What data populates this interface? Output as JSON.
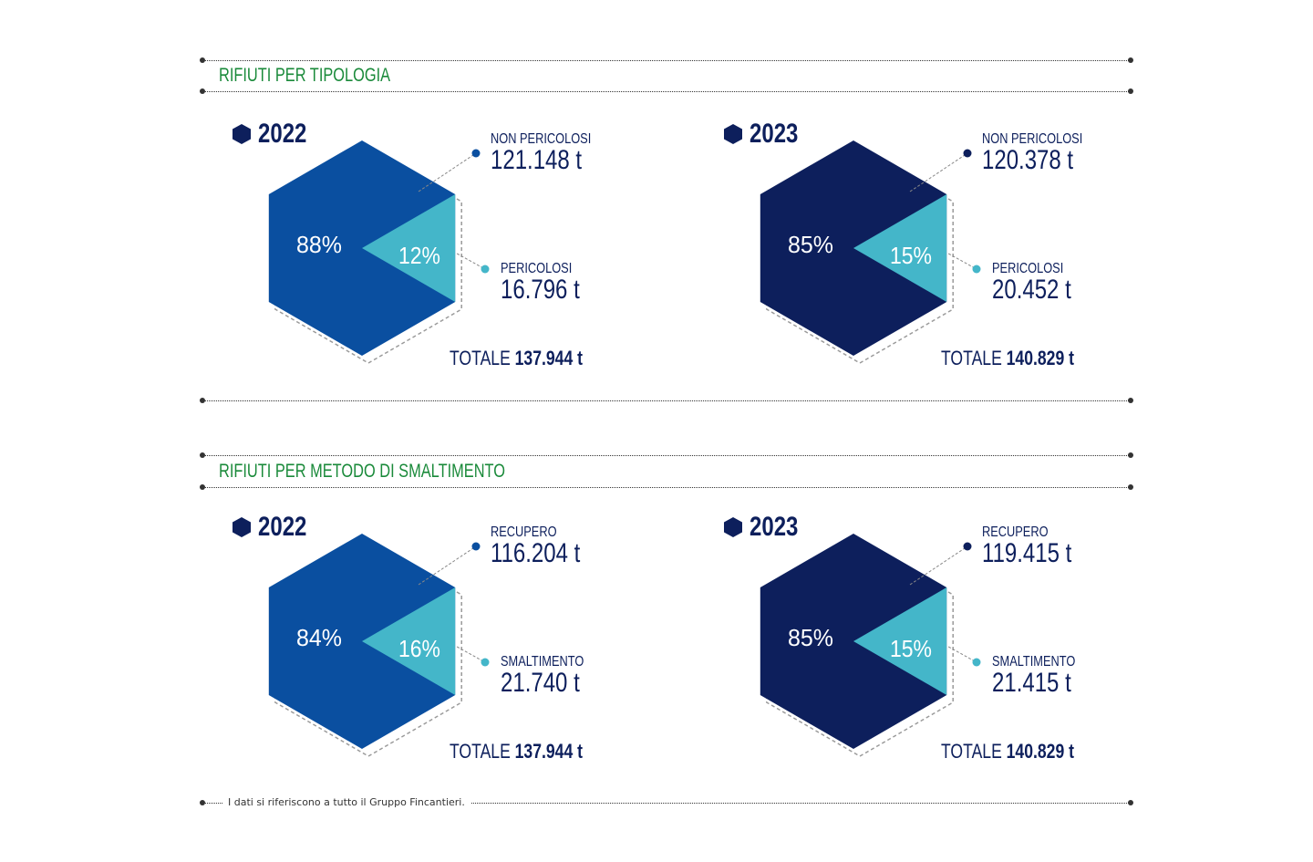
{
  "colors": {
    "year_2022": "#0a4fa0",
    "year_2023": "#0d1f5c",
    "small_share": "#44b6c9",
    "section_title": "#1a8a3a",
    "text": "#0d1f5c"
  },
  "sections": [
    {
      "title": "RIFIUTI PER TIPOLOGIA",
      "panels": [
        {
          "year": "2022",
          "big_pct": "88%",
          "small_pct": "12%",
          "big_label": "NON PERICOLOSI",
          "big_value": "121.148 t",
          "small_label": "PERICOLOSI",
          "small_value": "16.796 t",
          "total_label": "TOTALE",
          "total_value": "137.944 t"
        },
        {
          "year": "2023",
          "big_pct": "85%",
          "small_pct": "15%",
          "big_label": "NON PERICOLOSI",
          "big_value": "120.378 t",
          "small_label": "PERICOLOSI",
          "small_value": "20.452 t",
          "total_label": "TOTALE",
          "total_value": "140.829 t"
        }
      ]
    },
    {
      "title": "RIFIUTI PER METODO DI SMALTIMENTO",
      "panels": [
        {
          "year": "2022",
          "big_pct": "84%",
          "small_pct": "16%",
          "big_label": "RECUPERO",
          "big_value": "116.204 t",
          "small_label": "SMALTIMENTO",
          "small_value": "21.740 t",
          "total_label": "TOTALE",
          "total_value": "137.944 t"
        },
        {
          "year": "2023",
          "big_pct": "85%",
          "small_pct": "15%",
          "big_label": "RECUPERO",
          "big_value": "119.415 t",
          "small_label": "SMALTIMENTO",
          "small_value": "21.415 t",
          "total_label": "TOTALE",
          "total_value": "140.829 t"
        }
      ]
    }
  ],
  "chart_data": [
    {
      "type": "pie",
      "title": "RIFIUTI PER TIPOLOGIA",
      "subtitle": "2022",
      "categories": [
        "NON PERICOLOSI",
        "PERICOLOSI"
      ],
      "values": [
        121148,
        16796
      ],
      "percentages": [
        88,
        12
      ],
      "unit": "t",
      "total": 137944
    },
    {
      "type": "pie",
      "title": "RIFIUTI PER TIPOLOGIA",
      "subtitle": "2023",
      "categories": [
        "NON PERICOLOSI",
        "PERICOLOSI"
      ],
      "values": [
        120378,
        20452
      ],
      "percentages": [
        85,
        15
      ],
      "unit": "t",
      "total": 140829
    },
    {
      "type": "pie",
      "title": "RIFIUTI PER METODO DI SMALTIMENTO",
      "subtitle": "2022",
      "categories": [
        "RECUPERO",
        "SMALTIMENTO"
      ],
      "values": [
        116204,
        21740
      ],
      "percentages": [
        84,
        16
      ],
      "unit": "t",
      "total": 137944
    },
    {
      "type": "pie",
      "title": "RIFIUTI PER METODO DI SMALTIMENTO",
      "subtitle": "2023",
      "categories": [
        "RECUPERO",
        "SMALTIMENTO"
      ],
      "values": [
        119415,
        21415
      ],
      "percentages": [
        85,
        15
      ],
      "unit": "t",
      "total": 140829
    }
  ],
  "footer": {
    "note": "I dati si riferiscono a tutto il Gruppo Fincantieri."
  }
}
